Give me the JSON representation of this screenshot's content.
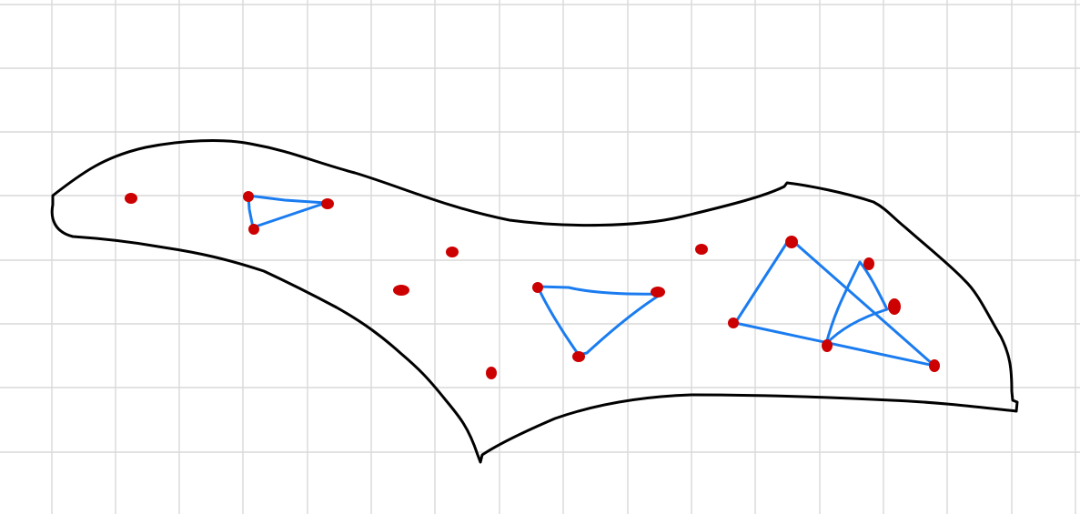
{
  "colors": {
    "background": "#ffffff",
    "grid": "#d9d9d9",
    "outline": "#000000",
    "triangle": "#1a7cf0",
    "point": "#cc0000"
  },
  "elements": {
    "grid": "square-grid-paper",
    "region": "closed-hand-drawn-region",
    "points": "red-dots",
    "triangles": "blue-triangles"
  }
}
